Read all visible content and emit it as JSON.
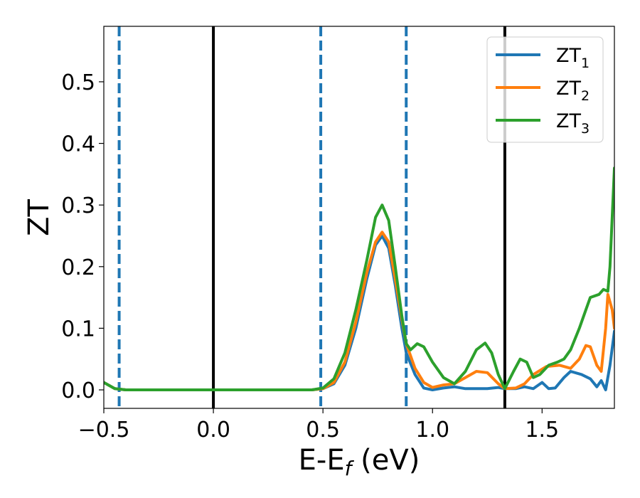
{
  "chart_data": {
    "type": "line",
    "title": "",
    "xlabel": "E-E",
    "xlabel_sub": "f",
    "xlabel_unit": " (eV)",
    "ylabel": "ZT",
    "xlim": [
      -0.5,
      1.83
    ],
    "ylim": [
      -0.03,
      0.59
    ],
    "xticks": [
      -0.5,
      0.0,
      0.5,
      1.0,
      1.5
    ],
    "xtick_labels": [
      "−0.5",
      "0.0",
      "0.5",
      "1.0",
      "1.5"
    ],
    "yticks": [
      0.0,
      0.1,
      0.2,
      0.3,
      0.4,
      0.5
    ],
    "ytick_labels": [
      "0.0",
      "0.1",
      "0.2",
      "0.3",
      "0.4",
      "0.5"
    ],
    "grid": false,
    "legend_position": "top-right",
    "vlines": [
      {
        "x": -0.43,
        "style": "dashed",
        "color": "#1f77b4"
      },
      {
        "x": 0.0,
        "style": "solid",
        "color": "#000000"
      },
      {
        "x": 0.49,
        "style": "dashed",
        "color": "#1f77b4"
      },
      {
        "x": 0.88,
        "style": "dashed",
        "color": "#1f77b4"
      },
      {
        "x": 1.33,
        "style": "solid",
        "color": "#000000"
      }
    ],
    "series": [
      {
        "name": "ZT",
        "name_sub": "1",
        "color": "#1f77b4",
        "points": [
          [
            -0.5,
            0.012
          ],
          [
            -0.45,
            0.002
          ],
          [
            -0.4,
            0.0
          ],
          [
            0.0,
            0.0
          ],
          [
            0.45,
            0.0
          ],
          [
            0.5,
            0.002
          ],
          [
            0.55,
            0.01
          ],
          [
            0.6,
            0.04
          ],
          [
            0.65,
            0.1
          ],
          [
            0.7,
            0.18
          ],
          [
            0.74,
            0.235
          ],
          [
            0.77,
            0.25
          ],
          [
            0.8,
            0.23
          ],
          [
            0.83,
            0.17
          ],
          [
            0.86,
            0.1
          ],
          [
            0.88,
            0.06
          ],
          [
            0.92,
            0.025
          ],
          [
            0.96,
            0.003
          ],
          [
            1.0,
            0.0
          ],
          [
            1.05,
            0.003
          ],
          [
            1.1,
            0.005
          ],
          [
            1.15,
            0.002
          ],
          [
            1.2,
            0.002
          ],
          [
            1.25,
            0.002
          ],
          [
            1.3,
            0.004
          ],
          [
            1.33,
            0.002
          ],
          [
            1.38,
            0.002
          ],
          [
            1.42,
            0.005
          ],
          [
            1.46,
            0.002
          ],
          [
            1.5,
            0.012
          ],
          [
            1.53,
            0.002
          ],
          [
            1.56,
            0.003
          ],
          [
            1.6,
            0.02
          ],
          [
            1.63,
            0.03
          ],
          [
            1.68,
            0.025
          ],
          [
            1.72,
            0.018
          ],
          [
            1.75,
            0.005
          ],
          [
            1.77,
            0.015
          ],
          [
            1.79,
            0.0
          ],
          [
            1.81,
            0.04
          ],
          [
            1.83,
            0.095
          ]
        ]
      },
      {
        "name": "ZT",
        "name_sub": "2",
        "color": "#ff7f0e",
        "points": [
          [
            -0.5,
            0.012
          ],
          [
            -0.45,
            0.002
          ],
          [
            -0.4,
            0.0
          ],
          [
            0.0,
            0.0
          ],
          [
            0.45,
            0.0
          ],
          [
            0.5,
            0.002
          ],
          [
            0.55,
            0.012
          ],
          [
            0.6,
            0.045
          ],
          [
            0.65,
            0.11
          ],
          [
            0.7,
            0.19
          ],
          [
            0.74,
            0.24
          ],
          [
            0.77,
            0.256
          ],
          [
            0.8,
            0.24
          ],
          [
            0.83,
            0.18
          ],
          [
            0.86,
            0.115
          ],
          [
            0.88,
            0.075
          ],
          [
            0.92,
            0.035
          ],
          [
            0.96,
            0.012
          ],
          [
            1.0,
            0.004
          ],
          [
            1.05,
            0.008
          ],
          [
            1.1,
            0.01
          ],
          [
            1.15,
            0.02
          ],
          [
            1.2,
            0.03
          ],
          [
            1.25,
            0.028
          ],
          [
            1.3,
            0.01
          ],
          [
            1.33,
            0.002
          ],
          [
            1.38,
            0.003
          ],
          [
            1.42,
            0.01
          ],
          [
            1.46,
            0.025
          ],
          [
            1.52,
            0.038
          ],
          [
            1.58,
            0.04
          ],
          [
            1.63,
            0.035
          ],
          [
            1.67,
            0.05
          ],
          [
            1.7,
            0.072
          ],
          [
            1.72,
            0.07
          ],
          [
            1.75,
            0.04
          ],
          [
            1.77,
            0.03
          ],
          [
            1.79,
            0.1
          ],
          [
            1.8,
            0.155
          ],
          [
            1.82,
            0.13
          ],
          [
            1.83,
            0.1
          ]
        ]
      },
      {
        "name": "ZT",
        "name_sub": "3",
        "color": "#2ca02c",
        "points": [
          [
            -0.5,
            0.012
          ],
          [
            -0.45,
            0.002
          ],
          [
            -0.4,
            0.0
          ],
          [
            0.0,
            0.0
          ],
          [
            0.45,
            0.0
          ],
          [
            0.5,
            0.003
          ],
          [
            0.55,
            0.018
          ],
          [
            0.6,
            0.06
          ],
          [
            0.65,
            0.13
          ],
          [
            0.7,
            0.21
          ],
          [
            0.74,
            0.28
          ],
          [
            0.77,
            0.3
          ],
          [
            0.8,
            0.275
          ],
          [
            0.83,
            0.2
          ],
          [
            0.86,
            0.12
          ],
          [
            0.88,
            0.075
          ],
          [
            0.9,
            0.065
          ],
          [
            0.93,
            0.075
          ],
          [
            0.96,
            0.07
          ],
          [
            1.0,
            0.045
          ],
          [
            1.05,
            0.02
          ],
          [
            1.1,
            0.01
          ],
          [
            1.15,
            0.03
          ],
          [
            1.2,
            0.065
          ],
          [
            1.24,
            0.076
          ],
          [
            1.27,
            0.06
          ],
          [
            1.3,
            0.025
          ],
          [
            1.33,
            0.002
          ],
          [
            1.37,
            0.03
          ],
          [
            1.4,
            0.05
          ],
          [
            1.43,
            0.045
          ],
          [
            1.46,
            0.02
          ],
          [
            1.49,
            0.025
          ],
          [
            1.53,
            0.04
          ],
          [
            1.57,
            0.045
          ],
          [
            1.6,
            0.05
          ],
          [
            1.63,
            0.065
          ],
          [
            1.67,
            0.1
          ],
          [
            1.7,
            0.13
          ],
          [
            1.72,
            0.15
          ],
          [
            1.76,
            0.155
          ],
          [
            1.78,
            0.163
          ],
          [
            1.8,
            0.16
          ],
          [
            1.81,
            0.2
          ],
          [
            1.82,
            0.28
          ],
          [
            1.83,
            0.36
          ]
        ]
      }
    ]
  }
}
